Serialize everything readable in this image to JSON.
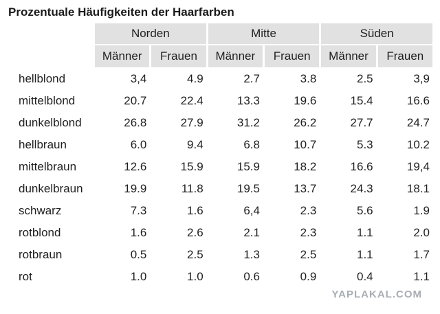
{
  "title": "Prozentuale Häufigkeiten der Haarfarben",
  "regions": [
    "Norden",
    "Mitte",
    "Süden"
  ],
  "genders": [
    "Männer",
    "Frauen",
    "Männer",
    "Frauen",
    "Männer",
    "Frauen"
  ],
  "rows": [
    {
      "label": "hellblond",
      "values": [
        "3,4",
        "4.9",
        "2.7",
        "3.8",
        "2.5",
        "3,9"
      ]
    },
    {
      "label": "mittelblond",
      "values": [
        "20.7",
        "22.4",
        "13.3",
        "19.6",
        "15.4",
        "16.6"
      ]
    },
    {
      "label": "dunkelblond",
      "values": [
        "26.8",
        "27.9",
        "31.2",
        "26.2",
        "27.7",
        "24.7"
      ]
    },
    {
      "label": "hellbraun",
      "values": [
        "6.0",
        "9.4",
        "6.8",
        "10.7",
        "5.3",
        "10.2"
      ]
    },
    {
      "label": "mittelbraun",
      "values": [
        "12.6",
        "15.9",
        "15.9",
        "18.2",
        "16.6",
        "19,4"
      ]
    },
    {
      "label": "dunkelbraun",
      "values": [
        "19.9",
        "11.8",
        "19.5",
        "13.7",
        "24.3",
        "18.1"
      ]
    },
    {
      "label": "schwarz",
      "values": [
        "7.3",
        "1.6",
        "6,4",
        "2.3",
        "5.6",
        "1.9"
      ]
    },
    {
      "label": "rotblond",
      "values": [
        "1.6",
        "2.6",
        "2.1",
        "2.3",
        "1.1",
        "2.0"
      ]
    },
    {
      "label": "rotbraun",
      "values": [
        "0.5",
        "2.5",
        "1.3",
        "2.5",
        "1.1",
        "1.7"
      ]
    },
    {
      "label": "rot",
      "values": [
        "1.0",
        "1.0",
        "0.6",
        "0.9",
        "0.4",
        "1.1"
      ]
    }
  ],
  "watermark": "YAPLAKAL.COM"
}
